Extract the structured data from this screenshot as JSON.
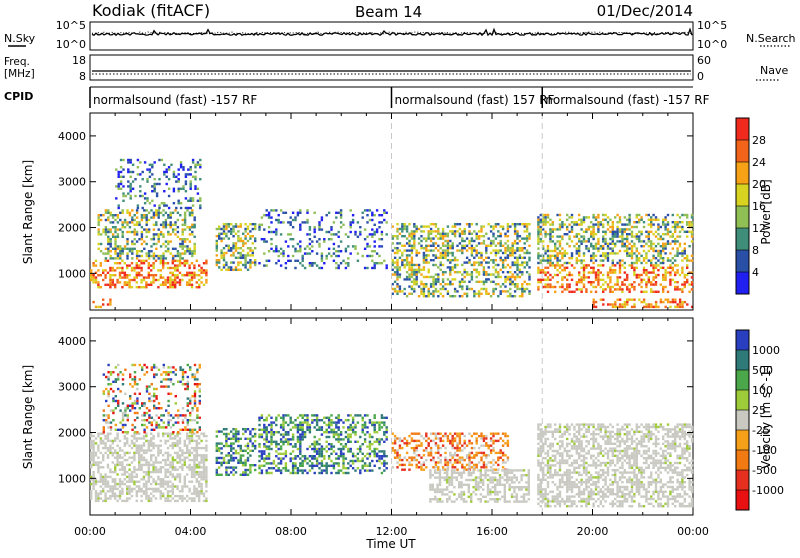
{
  "header": {
    "station": "Kodiak (fitACF)",
    "beam": "Beam 14",
    "date": "01/Dec/2014"
  },
  "labels": {
    "nsky": "N.Sky",
    "nsearch": "N.Search",
    "freq_line1": "Freq.",
    "freq_line2": "[MHz]",
    "nave": "Nave",
    "cpid": "CPID",
    "ticks_noise_high": "10^5",
    "ticks_noise_low": "10^0",
    "ticks_freq_high": "18",
    "ticks_freq_low": "8",
    "ticks_nave_high": "60",
    "ticks_nave_low": "0"
  },
  "cpid_segments": [
    {
      "label": "normalsound (fast) -157 RF",
      "start_hour": 0
    },
    {
      "label": "normalsound (fast) 157 RF",
      "start_hour": 12
    },
    {
      "label": "normalsound (fast) -157 RF",
      "start_hour": 18
    }
  ],
  "chart_data": [
    {
      "type": "heatmap",
      "panel": "power",
      "ylabel": "Slant Range [km]",
      "xlabel": "Time UT",
      "x_unit": "hours UT",
      "xlim": [
        0,
        24
      ],
      "ylim": [
        200,
        4500
      ],
      "yticks": [
        1000,
        2000,
        3000,
        4000
      ],
      "xticks": [
        "00:00",
        "04:00",
        "08:00",
        "12:00",
        "16:00",
        "20:00",
        "00:00"
      ],
      "colorbar": {
        "label": "Power [dB]",
        "ticks": [
          "28",
          "24",
          "20",
          "16",
          "12",
          "8",
          "4"
        ],
        "colors": [
          "#f02a1d",
          "#f2641a",
          "#f7a216",
          "#d8d321",
          "#8fbf55",
          "#3f8e7a",
          "#2a4fa6",
          "#2020f0"
        ]
      },
      "echo_regions": [
        {
          "t0": 0.0,
          "t1": 4.6,
          "r0": 700,
          "r1": 1300,
          "level": "high"
        },
        {
          "t0": 0.3,
          "t1": 4.2,
          "r0": 1300,
          "r1": 2400,
          "level": "medium"
        },
        {
          "t0": 1.0,
          "t1": 4.4,
          "r0": 2400,
          "r1": 3500,
          "level": "low"
        },
        {
          "t0": 0.0,
          "t1": 0.9,
          "r0": 250,
          "r1": 450,
          "level": "high"
        },
        {
          "t0": 5.0,
          "t1": 6.6,
          "r0": 1100,
          "r1": 2100,
          "level": "medium"
        },
        {
          "t0": 6.7,
          "t1": 11.8,
          "r0": 1100,
          "r1": 2400,
          "level": "low"
        },
        {
          "t0": 12.0,
          "t1": 17.5,
          "r0": 500,
          "r1": 2100,
          "level": "medium"
        },
        {
          "t0": 17.8,
          "t1": 24.0,
          "r0": 600,
          "r1": 1200,
          "level": "high"
        },
        {
          "t0": 17.8,
          "t1": 24.0,
          "r0": 1200,
          "r1": 2300,
          "level": "medium"
        },
        {
          "t0": 20.0,
          "t1": 24.0,
          "r0": 250,
          "r1": 450,
          "level": "high"
        }
      ]
    },
    {
      "type": "heatmap",
      "panel": "velocity",
      "ylabel": "Slant Range [km]",
      "xlabel": "Time UT",
      "x_unit": "hours UT",
      "xlim": [
        0,
        24
      ],
      "ylim": [
        200,
        4500
      ],
      "yticks": [
        1000,
        2000,
        3000,
        4000
      ],
      "xticks": [
        "00:00",
        "04:00",
        "08:00",
        "12:00",
        "16:00",
        "20:00",
        "00:00"
      ],
      "colorbar": {
        "label": "Velocity [m s^-1]",
        "ticks": [
          "1000",
          "500",
          "100",
          "25",
          "-25",
          "-100",
          "-500",
          "-1000"
        ],
        "colors": [
          "#2a3fc0",
          "#2e7a78",
          "#4aa84a",
          "#9ecb3a",
          "#c9c9c2",
          "#f5a018",
          "#f27a12",
          "#e53020",
          "#e81010"
        ]
      },
      "echo_regions": [
        {
          "t0": 0.0,
          "t1": 4.6,
          "r0": 500,
          "r1": 2000,
          "level": "ground"
        },
        {
          "t0": 0.5,
          "t1": 4.4,
          "r0": 2000,
          "r1": 3500,
          "level": "mixed"
        },
        {
          "t0": 5.0,
          "t1": 6.6,
          "r0": 1100,
          "r1": 2100,
          "level": "positive"
        },
        {
          "t0": 6.7,
          "t1": 11.8,
          "r0": 1100,
          "r1": 2400,
          "level": "positive"
        },
        {
          "t0": 12.0,
          "t1": 16.6,
          "r0": 1200,
          "r1": 2000,
          "level": "negative"
        },
        {
          "t0": 13.5,
          "t1": 17.5,
          "r0": 500,
          "r1": 1200,
          "level": "ground"
        },
        {
          "t0": 17.8,
          "t1": 24.0,
          "r0": 400,
          "r1": 2200,
          "level": "ground"
        }
      ]
    }
  ],
  "colors": {
    "dashed_lines": "#c8c8c8",
    "axes": "#000000"
  }
}
